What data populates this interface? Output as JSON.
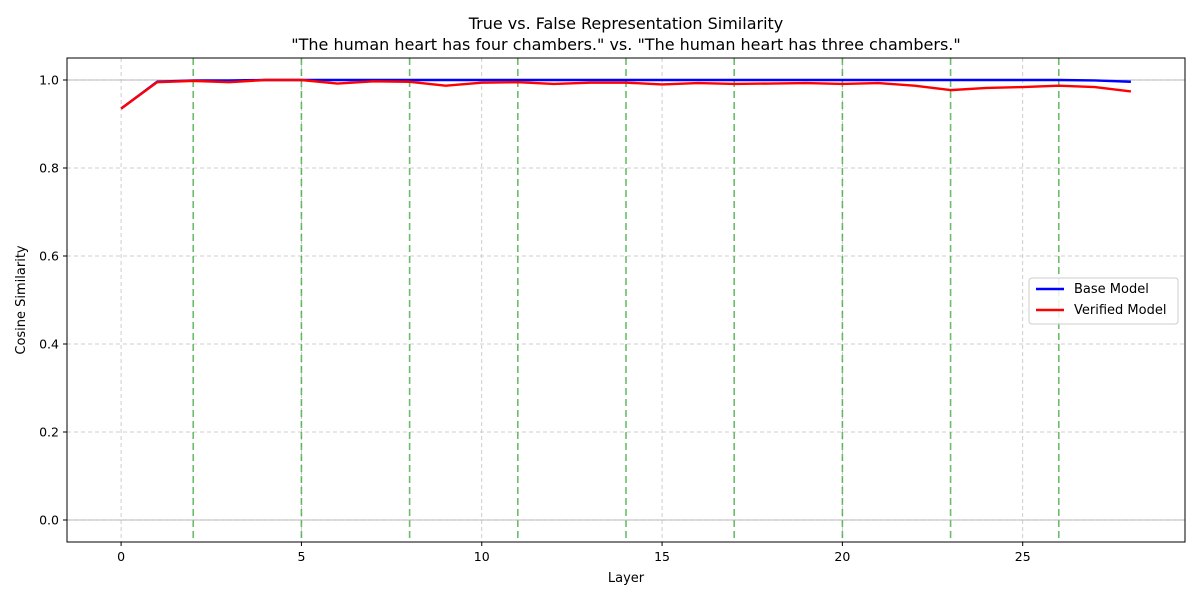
{
  "chart_data": {
    "type": "line",
    "title": "True vs. False Representation Similarity",
    "subtitle": "\"The human heart has four chambers.\" vs. \"The human heart has three chambers.\"",
    "xlabel": "Layer",
    "ylabel": "Cosine Similarity",
    "xlim": [
      -1.5,
      29.5
    ],
    "ylim": [
      -0.05,
      1.05
    ],
    "xticks": [
      0,
      5,
      10,
      15,
      20,
      25
    ],
    "yticks": [
      0.0,
      0.2,
      0.4,
      0.6,
      0.8,
      1.0
    ],
    "xtick_labels": [
      "0",
      "5",
      "10",
      "15",
      "20",
      "25"
    ],
    "ytick_labels": [
      "0.0",
      "0.2",
      "0.4",
      "0.6",
      "0.8",
      "1.0"
    ],
    "grid": true,
    "legend_position": "center-right",
    "reference_lines_y": [
      0.0,
      1.0
    ],
    "highlight_layers": [
      2,
      5,
      8,
      11,
      14,
      17,
      20,
      23,
      26
    ],
    "x": [
      0,
      1,
      2,
      3,
      4,
      5,
      6,
      7,
      8,
      9,
      10,
      11,
      12,
      13,
      14,
      15,
      16,
      17,
      18,
      19,
      20,
      21,
      22,
      23,
      24,
      25,
      26,
      27,
      28
    ],
    "series": [
      {
        "name": "Base Model",
        "color": "#0000ff",
        "values": [
          0.935,
          0.996,
          0.999,
          0.999,
          1.0,
          1.0,
          1.0,
          1.0,
          1.0,
          1.0,
          1.0,
          1.0,
          1.0,
          1.0,
          1.0,
          1.0,
          1.0,
          1.0,
          1.0,
          1.0,
          1.0,
          1.0,
          1.0,
          1.0,
          1.0,
          1.0,
          1.0,
          0.999,
          0.996
        ]
      },
      {
        "name": "Verified Model",
        "color": "#ff0000",
        "values": [
          0.935,
          0.995,
          0.998,
          0.995,
          1.0,
          1.0,
          0.992,
          0.997,
          0.996,
          0.987,
          0.994,
          0.995,
          0.991,
          0.994,
          0.994,
          0.99,
          0.993,
          0.991,
          0.992,
          0.993,
          0.991,
          0.993,
          0.987,
          0.977,
          0.982,
          0.984,
          0.987,
          0.984,
          0.974
        ]
      }
    ]
  },
  "colors": {
    "grid": "#c0c0c0",
    "highlight": "#3aa63a",
    "reference": "#aaaaaa"
  }
}
